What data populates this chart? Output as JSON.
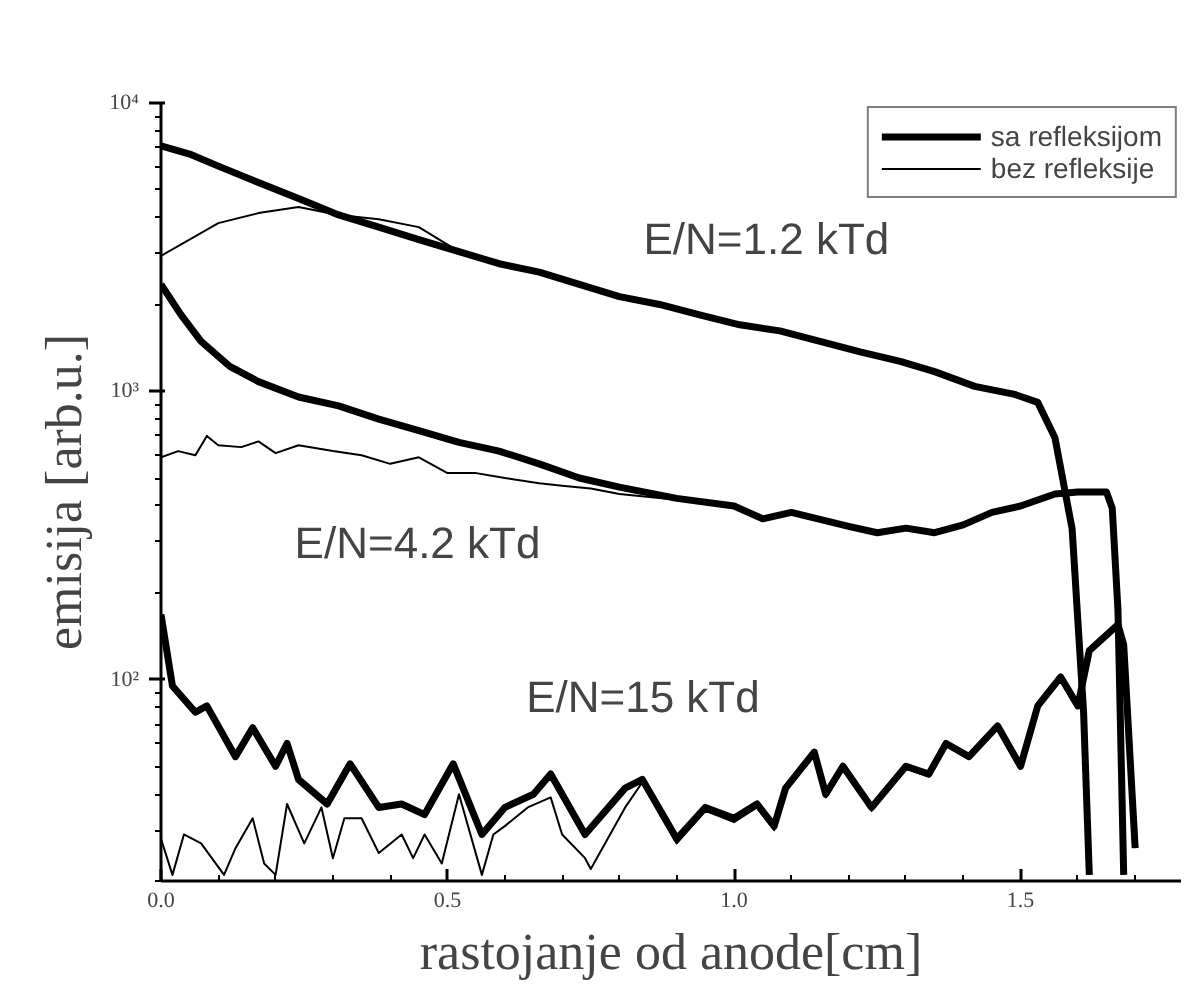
{
  "chart_data": {
    "type": "line",
    "xlabel": "rastojanje od anode[cm]",
    "ylabel": "emisija [arb.u.]",
    "log": "y",
    "xlim": [
      0,
      1.78
    ],
    "ylim": [
      20,
      10000
    ],
    "xticks": [
      {
        "value": 0,
        "label": "0.0"
      },
      0.5,
      {
        "value": 1,
        "label": "1.0"
      },
      1.5
    ],
    "yticks": [
      {
        "value": 100,
        "label": "10²"
      },
      {
        "value": 1000,
        "label": "10³"
      },
      {
        "value": 10000,
        "label": "10⁴"
      }
    ],
    "grid": false,
    "legend": "top right",
    "marker": "none",
    "line_style": "solid",
    "annotations": [
      "E/N=1.2 kTd",
      "E/N=4.2 kTd",
      "E/N=15 kTd"
    ],
    "series": [
      {
        "name": "sa refleksijom",
        "color": "#000000",
        "x": [
          0,
          0.05,
          0.1,
          0.17,
          0.24,
          0.31,
          0.38,
          0.45,
          0.52,
          0.59,
          0.66,
          0.73,
          0.8,
          0.87,
          0.94,
          1.01,
          1.08,
          1.15,
          1.22,
          1.29,
          1.35,
          1.42,
          1.49,
          1.53,
          1.56,
          1.59,
          1.61,
          1.62
        ],
        "values": [
          7100,
          6650,
          6040,
          5300,
          4660,
          4090,
          3710,
          3360,
          3050,
          2770,
          2590,
          2350,
          2130,
          2000,
          1840,
          1700,
          1620,
          1490,
          1370,
          1270,
          1170,
          1040,
          975,
          915,
          690,
          333,
          77,
          21
        ]
      },
      {
        "name": "bez refleksije",
        "color": "#000000",
        "x": [
          0,
          0.1,
          0.17,
          0.24,
          0.31,
          0.38,
          0.45,
          0.52,
          0.59,
          0.66,
          0.73,
          0.8,
          0.87,
          0.94,
          1.01,
          1.08,
          1.15,
          1.22,
          1.29,
          1.35,
          1.42,
          1.49,
          1.53,
          1.56,
          1.59,
          1.61,
          1.62
        ],
        "values": [
          2950,
          3830,
          4150,
          4360,
          4090,
          3950,
          3710,
          3050,
          2770,
          2590,
          2350,
          2130,
          2000,
          1840,
          1700,
          1620,
          1490,
          1370,
          1270,
          1170,
          1040,
          975,
          915,
          690,
          333,
          77,
          21
        ]
      },
      {
        "color": "#000000",
        "x": [
          0,
          0.035,
          0.07,
          0.12,
          0.17,
          0.24,
          0.31,
          0.38,
          0.45,
          0.52,
          0.59,
          0.66,
          0.73,
          0.8,
          0.9,
          1.0,
          1.05,
          1.1,
          1.2,
          1.25,
          1.3,
          1.35,
          1.4,
          1.45,
          1.5,
          1.56,
          1.6,
          1.65,
          1.66,
          1.67,
          1.68
        ],
        "values": [
          2350,
          1840,
          1490,
          1220,
          1080,
          955,
          890,
          800,
          730,
          665,
          620,
          560,
          500,
          465,
          425,
          400,
          361,
          380,
          340,
          323,
          335,
          323,
          344,
          380,
          400,
          440,
          447,
          447,
          393,
          174,
          21
        ]
      },
      {
        "color": "#000000",
        "x": [
          0,
          0.03,
          0.06,
          0.08,
          0.1,
          0.14,
          0.17,
          0.2,
          0.24,
          0.3,
          0.35,
          0.4,
          0.45,
          0.5,
          0.55,
          0.6,
          0.66,
          0.7,
          0.75,
          0.8,
          0.9,
          1.0,
          1.05,
          1.1,
          1.2,
          1.25,
          1.3,
          1.35,
          1.4,
          1.45,
          1.5,
          1.56,
          1.6,
          1.65,
          1.66,
          1.67,
          1.68
        ],
        "values": [
          590,
          620,
          600,
          700,
          650,
          640,
          670,
          610,
          650,
          620,
          600,
          560,
          590,
          520,
          520,
          500,
          480,
          470,
          460,
          440,
          420,
          395,
          358,
          375,
          337,
          320,
          332,
          320,
          341,
          377,
          397,
          437,
          445,
          445,
          390,
          172,
          21
        ]
      },
      {
        "color": "#000000",
        "x": [
          0,
          0.02,
          0.06,
          0.08,
          0.13,
          0.16,
          0.2,
          0.22,
          0.24,
          0.29,
          0.33,
          0.38,
          0.42,
          0.46,
          0.51,
          0.56,
          0.6,
          0.65,
          0.68,
          0.74,
          0.81,
          0.84,
          0.9,
          0.95,
          1.0,
          1.04,
          1.07,
          1.09,
          1.14,
          1.16,
          1.19,
          1.24,
          1.3,
          1.34,
          1.37,
          1.41,
          1.46,
          1.5,
          1.53,
          1.57,
          1.6,
          1.62,
          1.67,
          1.68,
          1.7
        ],
        "values": [
          168,
          95,
          77,
          81,
          54,
          68,
          50,
          60,
          45,
          37,
          51,
          36,
          37,
          34,
          51,
          29,
          36,
          40,
          47,
          29,
          42,
          45,
          28,
          36,
          33,
          37,
          31,
          42,
          56,
          40,
          50,
          36,
          50,
          47,
          60,
          54,
          69,
          50,
          81,
          102,
          81,
          126,
          155,
          132,
          26
        ]
      },
      {
        "color": "#000000",
        "x": [
          0,
          0.02,
          0.04,
          0.07,
          0.11,
          0.13,
          0.16,
          0.18,
          0.2,
          0.22,
          0.25,
          0.28,
          0.3,
          0.32,
          0.35,
          0.38,
          0.42,
          0.44,
          0.46,
          0.49,
          0.52,
          0.56,
          0.58,
          0.6,
          0.64,
          0.68,
          0.7,
          0.74,
          0.75,
          0.81,
          0.84,
          0.9,
          0.95,
          1.0,
          1.04,
          1.07,
          1.09,
          1.14,
          1.16,
          1.19,
          1.24,
          1.3,
          1.34,
          1.37,
          1.41,
          1.46,
          1.5,
          1.53,
          1.57,
          1.6,
          1.62,
          1.67,
          1.68,
          1.7
        ],
        "values": [
          28,
          21,
          29,
          27,
          21,
          26,
          33,
          23,
          21,
          37,
          27,
          36,
          24,
          33,
          33,
          25,
          29,
          24,
          29,
          23,
          40,
          21,
          29,
          31,
          36,
          39,
          29,
          24,
          22,
          36,
          44,
          27,
          35,
          32,
          36,
          30,
          41,
          55,
          39,
          49,
          35,
          49,
          46,
          59,
          53,
          68,
          49,
          80,
          101,
          80,
          125,
          154,
          131,
          26
        ]
      }
    ]
  }
}
